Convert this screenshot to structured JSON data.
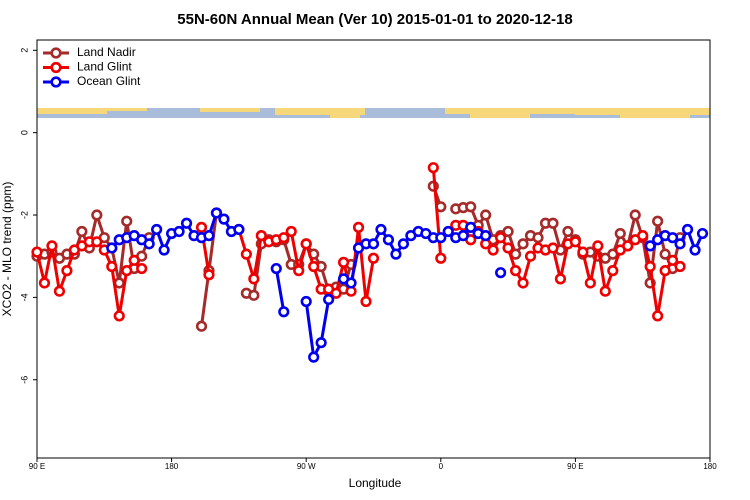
{
  "chart_data": {
    "type": "line",
    "title": "55N-60N Annual Mean (Ver 10)   2015-01-01 to 2020-12-18",
    "x_label": "Longitude",
    "y_label": "XCO2 - MLO trend (ppm)",
    "legend": "topleft",
    "x": [
      -270,
      -265,
      -260,
      -255,
      -250,
      -245,
      -240,
      -235,
      -230,
      -225,
      -220,
      -215,
      -210,
      -205,
      -200,
      -195,
      -190,
      -185,
      -180,
      -175,
      -170,
      -165,
      -160,
      -155,
      -150,
      -145,
      -140,
      -135,
      -130,
      -125,
      -120,
      -115,
      -110,
      -105,
      -100,
      -95,
      -90,
      -85,
      -80,
      -75,
      -70,
      -65,
      -60,
      -55,
      -50,
      -45,
      -40,
      -35,
      -30,
      -25,
      -20,
      -15,
      -10,
      -5,
      0,
      5,
      10,
      15,
      20,
      25,
      30,
      35,
      40,
      45,
      50,
      55,
      60,
      65,
      70,
      75,
      80,
      85,
      90,
      95,
      100,
      105,
      110,
      115,
      120,
      125,
      130,
      135,
      140,
      145,
      150,
      155,
      160,
      165,
      170,
      175,
      180
    ],
    "xlim": [
      -270,
      180
    ],
    "xticks": [
      {
        "value": -270,
        "label": "90 E"
      },
      {
        "value": -180,
        "label": "180"
      },
      {
        "value": -90,
        "label": "90 W"
      },
      0,
      {
        "value": 90,
        "label": "90 E"
      },
      {
        "value": 180,
        "label": "180"
      }
    ],
    "ylim": [
      -7.9,
      2.25
    ],
    "yticks": [
      -6,
      -4,
      -2,
      0,
      2
    ],
    "series": [
      {
        "name": "Land Nadir",
        "color": "#a52a2a",
        "values": [
          -3.0,
          -2.95,
          -2.9,
          -3.05,
          -2.95,
          -2.95,
          -2.4,
          -2.8,
          -2.0,
          -2.55,
          -2.8,
          -3.65,
          -2.15,
          -3.3,
          -3.0,
          -2.55,
          null,
          null,
          null,
          null,
          null,
          null,
          -4.7,
          -3.35,
          -1.95,
          null,
          null,
          null,
          -3.9,
          -3.95,
          -2.7,
          -2.6,
          -2.65,
          -2.6,
          -3.2,
          -3.2,
          -2.7,
          -2.95,
          -3.25,
          -3.85,
          -3.75,
          -3.8,
          -3.2,
          null,
          null,
          null,
          null,
          null,
          null,
          null,
          null,
          null,
          null,
          -1.3,
          -1.8,
          null,
          -1.85,
          -1.82,
          -1.8,
          -2.25,
          -2.0,
          -2.6,
          -2.5,
          -2.4,
          -2.95,
          -2.7,
          -2.5,
          -2.55,
          -2.2,
          -2.2,
          -2.85,
          -2.4,
          -2.6,
          -2.95,
          -2.9,
          -3.0,
          -3.05,
          -2.95,
          -2.45,
          -2.75,
          -2.0,
          -2.55,
          -3.65,
          -2.15,
          -2.95,
          -3.3,
          -2.55,
          null,
          null,
          null,
          null
        ]
      },
      {
        "name": "Land Glint",
        "color": "#ee0000",
        "values": [
          -2.9,
          -3.65,
          -2.75,
          -3.85,
          -3.35,
          -2.85,
          -2.75,
          -2.65,
          -2.65,
          -2.85,
          -3.25,
          -4.45,
          -3.35,
          -3.1,
          -3.3,
          null,
          null,
          null,
          null,
          null,
          null,
          null,
          -2.3,
          -3.45,
          null,
          null,
          null,
          -2.35,
          -2.95,
          -3.55,
          -2.5,
          -2.65,
          -2.6,
          -2.55,
          -2.4,
          -3.35,
          -2.7,
          -3.25,
          -3.8,
          -3.8,
          -3.9,
          -3.15,
          -3.85,
          -2.3,
          -4.1,
          -3.05,
          null,
          null,
          null,
          null,
          null,
          null,
          null,
          -0.85,
          -3.05,
          null,
          -2.25,
          -2.25,
          -2.6,
          -2.4,
          -2.7,
          -2.85,
          -2.55,
          -2.8,
          -3.35,
          -3.65,
          -3.0,
          -2.8,
          -2.85,
          -2.8,
          -3.55,
          -2.7,
          -2.65,
          -2.9,
          -3.65,
          -2.75,
          -3.85,
          -3.35,
          -2.85,
          -2.75,
          -2.6,
          -2.5,
          -3.25,
          -4.45,
          -3.35,
          -3.1,
          -3.25,
          null,
          null,
          null,
          null
        ]
      },
      {
        "name": "Ocean Glint",
        "color": "#0000ee",
        "values": [
          null,
          null,
          null,
          null,
          null,
          null,
          null,
          null,
          null,
          null,
          -2.8,
          -2.6,
          -2.55,
          -2.5,
          -2.6,
          -2.7,
          -2.35,
          -2.85,
          -2.45,
          -2.4,
          -2.2,
          -2.5,
          -2.55,
          -2.5,
          -1.95,
          -2.1,
          -2.4,
          -2.35,
          null,
          null,
          null,
          null,
          -3.3,
          -4.35,
          null,
          null,
          -4.1,
          -5.45,
          -5.1,
          -4.05,
          null,
          -3.55,
          -3.65,
          -2.8,
          -2.7,
          -2.7,
          -2.35,
          -2.6,
          -2.95,
          -2.7,
          -2.5,
          -2.4,
          -2.45,
          -2.55,
          -2.55,
          -2.4,
          -2.55,
          -2.5,
          -2.3,
          -2.45,
          -2.5,
          null,
          -3.4,
          null,
          null,
          null,
          null,
          null,
          null,
          null,
          null,
          null,
          null,
          null,
          null,
          null,
          null,
          null,
          null,
          null,
          null,
          null,
          -2.75,
          -2.6,
          -2.5,
          -2.55,
          -2.7,
          -2.35,
          -2.85,
          -2.45,
          null
        ]
      }
    ]
  }
}
